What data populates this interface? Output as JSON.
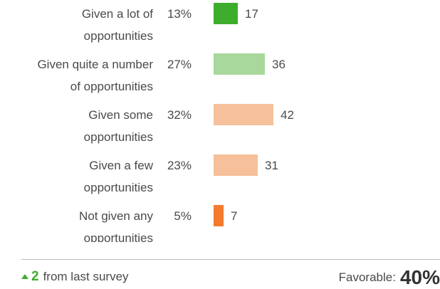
{
  "chart_data": {
    "type": "bar",
    "orientation": "horizontal",
    "categories": [
      [
        "Given a lot of",
        "opportunities"
      ],
      [
        "Given quite a number",
        "of opportunities"
      ],
      [
        "Given some",
        "opportunities"
      ],
      [
        "Given a few",
        "opportunities"
      ],
      [
        "Not given any",
        "opportunities"
      ]
    ],
    "percents": [
      "13%",
      "27%",
      "32%",
      "23%",
      "5%"
    ],
    "values": [
      17,
      36,
      42,
      31,
      7
    ],
    "colors": [
      "#3dae2b",
      "#a8d89b",
      "#f5c09a",
      "#f5c09a",
      "#f47a2f"
    ],
    "grid": false,
    "legend": "none"
  },
  "footer": {
    "change_value": "2",
    "change_text": "from last survey",
    "favorable_label": "Favorable:",
    "favorable_value": "40%"
  },
  "icons": {
    "change_arrow": "triangle-up-icon"
  }
}
